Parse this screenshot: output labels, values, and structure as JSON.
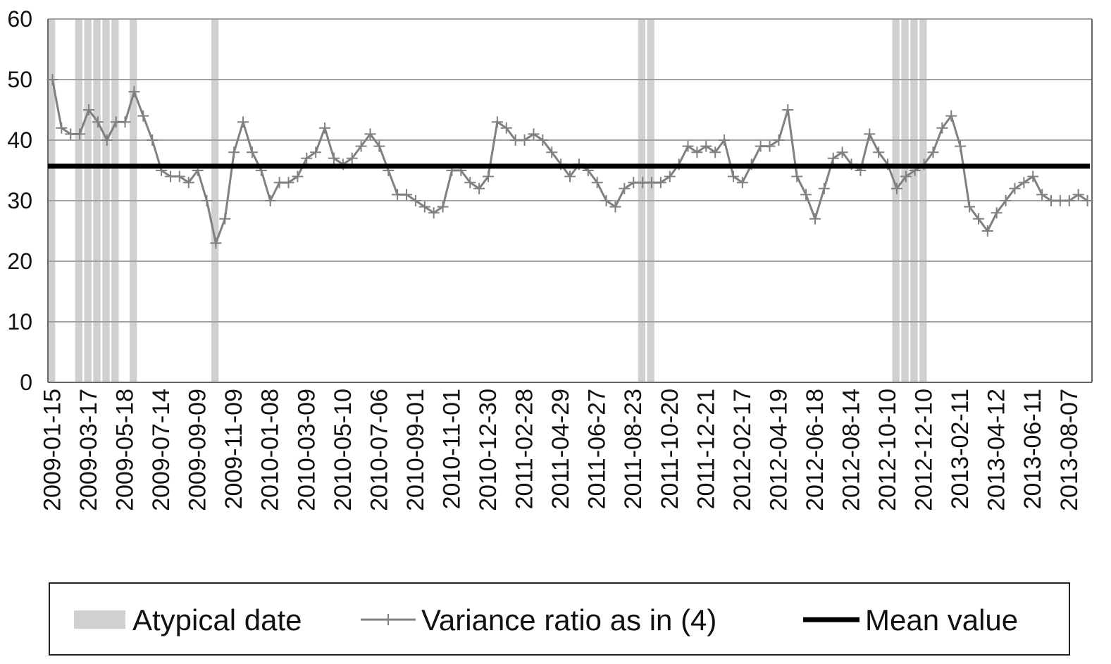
{
  "chart_data": {
    "type": "line",
    "categories": [
      "2009-01-15",
      null,
      null,
      null,
      "2009-03-17",
      null,
      null,
      null,
      "2009-05-18",
      null,
      null,
      null,
      "2009-07-14",
      null,
      null,
      null,
      "2009-09-09",
      null,
      null,
      null,
      "2009-11-09",
      null,
      null,
      null,
      "2010-01-08",
      null,
      null,
      null,
      "2010-03-09",
      null,
      null,
      null,
      "2010-05-10",
      null,
      null,
      null,
      "2010-07-06",
      null,
      null,
      null,
      "2010-09-01",
      null,
      null,
      null,
      "2010-11-01",
      null,
      null,
      null,
      "2010-12-30",
      null,
      null,
      null,
      "2011-02-28",
      null,
      null,
      null,
      "2011-04-29",
      null,
      null,
      null,
      "2011-06-27",
      null,
      null,
      null,
      "2011-08-23",
      null,
      null,
      null,
      "2011-10-20",
      null,
      null,
      null,
      "2011-12-21",
      null,
      null,
      null,
      "2012-02-17",
      null,
      null,
      null,
      "2012-04-19",
      null,
      null,
      null,
      "2012-06-18",
      null,
      null,
      null,
      "2012-08-14",
      null,
      null,
      null,
      "2012-10-10",
      null,
      null,
      null,
      "2012-12-10",
      null,
      null,
      null,
      "2013-02-11",
      null,
      null,
      null,
      "2013-04-12",
      null,
      null,
      null,
      "2013-06-11",
      null,
      null,
      null,
      "2013-08-07",
      null,
      null
    ],
    "series": [
      {
        "name": "Atypical date",
        "type": "bar",
        "color": "#d0d0d0",
        "values": [
          60,
          null,
          null,
          60,
          60,
          60,
          60,
          60,
          null,
          60,
          null,
          null,
          null,
          null,
          null,
          null,
          null,
          null,
          60,
          null,
          null,
          null,
          null,
          null,
          null,
          null,
          null,
          null,
          null,
          null,
          null,
          null,
          null,
          null,
          null,
          null,
          null,
          null,
          null,
          null,
          null,
          null,
          null,
          null,
          null,
          null,
          null,
          null,
          null,
          null,
          null,
          null,
          null,
          null,
          null,
          null,
          null,
          null,
          null,
          null,
          null,
          null,
          null,
          null,
          null,
          60,
          60,
          null,
          null,
          null,
          null,
          null,
          null,
          null,
          null,
          null,
          null,
          null,
          null,
          null,
          null,
          null,
          null,
          null,
          null,
          null,
          null,
          null,
          null,
          null,
          null,
          null,
          null,
          60,
          60,
          60,
          60,
          null,
          null,
          null,
          null,
          null,
          null,
          null,
          null,
          null,
          null,
          null,
          null,
          null,
          null,
          null,
          null,
          null,
          null
        ]
      },
      {
        "name": "Variance ratio as in (4)",
        "type": "line",
        "color": "#808080",
        "values": [
          50,
          42,
          41,
          41,
          45,
          43,
          40,
          43,
          43,
          48,
          44,
          40,
          35,
          34,
          34,
          33,
          35,
          30,
          23,
          27,
          38,
          43,
          38,
          35,
          30,
          33,
          33,
          34,
          37,
          38,
          42,
          37,
          36,
          37,
          39,
          41,
          39,
          35,
          31,
          31,
          30,
          29,
          28,
          29,
          35,
          35,
          33,
          32,
          34,
          43,
          42,
          40,
          40,
          41,
          40,
          38,
          36,
          34,
          36,
          35,
          33,
          30,
          29,
          32,
          33,
          33,
          33,
          33,
          34,
          36,
          39,
          38,
          39,
          38,
          40,
          34,
          33,
          36,
          39,
          39,
          40,
          45,
          34,
          31,
          27,
          32,
          37,
          38,
          36,
          35,
          41,
          38,
          36,
          32,
          34,
          35,
          36,
          38,
          42,
          44,
          39,
          29,
          27,
          25,
          28,
          30,
          32,
          33,
          34,
          31,
          30,
          30,
          30,
          31,
          30
        ]
      },
      {
        "name": "Mean value",
        "type": "hline",
        "color": "#000000",
        "value": 35.7
      }
    ],
    "ylim": [
      0,
      60
    ],
    "yticks": [
      0,
      10,
      20,
      30,
      40,
      50,
      60
    ],
    "grid": true,
    "legend": "bottom"
  }
}
